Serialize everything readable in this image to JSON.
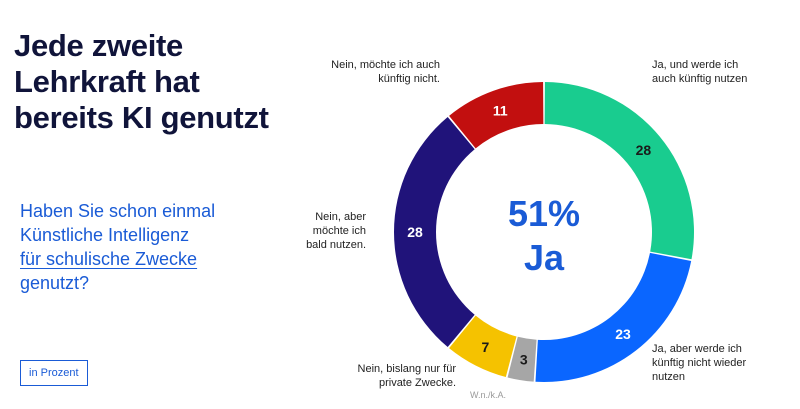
{
  "headline": [
    "Jede zweite",
    "Lehrkraft hat",
    "bereits KI genutzt"
  ],
  "question": [
    "Haben Sie schon einmal",
    "Künstliche Intelligenz",
    "für schulische Zwecke",
    "genutzt?"
  ],
  "unit_label": "in Prozent",
  "chart_data": {
    "type": "pie",
    "center_value": "51%",
    "center_label": "Ja",
    "categories": [
      "Ja, und werde ich auch künftig nutzen",
      "Ja, aber werde ich künftig nicht wieder nutzen",
      "W.n./k.A.",
      "Nein, bislang nur für private Zwecke.",
      "Nein, aber möchte ich bald nutzen.",
      "Nein, möchte ich auch künftig nicht."
    ],
    "values": [
      28,
      23,
      3,
      7,
      28,
      11
    ],
    "value_labels": [
      "28",
      "23",
      "3",
      "7",
      "28",
      "11"
    ],
    "colors": [
      "#19cc8f",
      "#0a66ff",
      "#a6a6a6",
      "#f5c200",
      "#20137a",
      "#c20f0f"
    ],
    "label_lines": [
      [
        "Ja, und werde ich",
        "auch künftig nutzen"
      ],
      [
        "Ja, aber werde ich",
        "künftig nicht wieder",
        "nutzen"
      ],
      [
        "W.n./k.A."
      ],
      [
        "Nein, bislang nur für",
        "private Zwecke."
      ],
      [
        "Nein, aber",
        "möchte ich",
        "bald nutzen."
      ],
      [
        "Nein, möchte ich auch",
        "künftig nicht."
      ]
    ]
  },
  "colors": {
    "accent": "#1a5bd6",
    "title": "#10143a"
  }
}
